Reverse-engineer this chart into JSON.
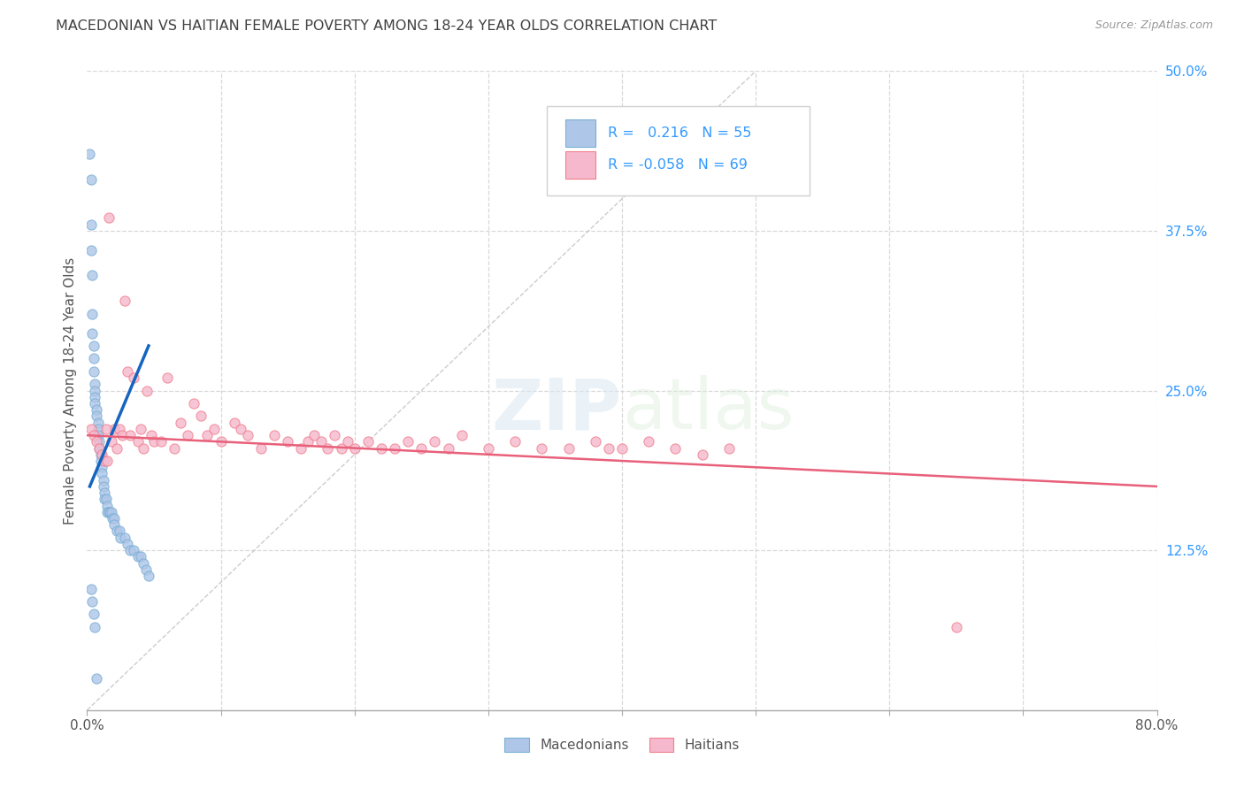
{
  "title": "MACEDONIAN VS HAITIAN FEMALE POVERTY AMONG 18-24 YEAR OLDS CORRELATION CHART",
  "source": "Source: ZipAtlas.com",
  "ylabel": "Female Poverty Among 18-24 Year Olds",
  "xlim": [
    0.0,
    0.8
  ],
  "ylim": [
    0.0,
    0.5
  ],
  "xticks": [
    0.0,
    0.1,
    0.2,
    0.3,
    0.4,
    0.5,
    0.6,
    0.7,
    0.8
  ],
  "xticklabels": [
    "0.0%",
    "",
    "",
    "",
    "",
    "",
    "",
    "",
    "80.0%"
  ],
  "yticks": [
    0.0,
    0.125,
    0.25,
    0.375,
    0.5
  ],
  "yticklabels": [
    "",
    "12.5%",
    "25.0%",
    "37.5%",
    "50.0%"
  ],
  "legend_r_mac": " 0.216",
  "legend_n_mac": "55",
  "legend_r_hai": "-0.058",
  "legend_n_hai": "69",
  "mac_color": "#aec6e8",
  "hai_color": "#f5b8cc",
  "mac_edge": "#7aafd4",
  "hai_edge": "#f08090",
  "trend_mac_color": "#1565C0",
  "trend_hai_color": "#e8607a",
  "ref_line_color": "#c0c0c0",
  "grid_color": "#d8d8d8",
  "title_color": "#404040",
  "axis_label_color": "#555555",
  "tick_color_right": "#3399ff",
  "watermark_color": "#dae8f4",
  "mac_x": [
    0.002,
    0.003,
    0.003,
    0.003,
    0.004,
    0.004,
    0.004,
    0.005,
    0.005,
    0.005,
    0.006,
    0.006,
    0.006,
    0.006,
    0.007,
    0.007,
    0.008,
    0.008,
    0.008,
    0.009,
    0.009,
    0.01,
    0.01,
    0.011,
    0.011,
    0.012,
    0.012,
    0.013,
    0.013,
    0.014,
    0.015,
    0.015,
    0.016,
    0.017,
    0.018,
    0.019,
    0.02,
    0.02,
    0.022,
    0.024,
    0.025,
    0.028,
    0.03,
    0.032,
    0.035,
    0.038,
    0.04,
    0.042,
    0.044,
    0.046,
    0.003,
    0.004,
    0.005,
    0.006,
    0.007
  ],
  "mac_y": [
    0.435,
    0.415,
    0.38,
    0.36,
    0.34,
    0.31,
    0.295,
    0.285,
    0.275,
    0.265,
    0.255,
    0.25,
    0.245,
    0.24,
    0.235,
    0.23,
    0.225,
    0.22,
    0.215,
    0.21,
    0.205,
    0.2,
    0.195,
    0.19,
    0.185,
    0.18,
    0.175,
    0.17,
    0.165,
    0.165,
    0.16,
    0.155,
    0.155,
    0.155,
    0.155,
    0.15,
    0.15,
    0.145,
    0.14,
    0.14,
    0.135,
    0.135,
    0.13,
    0.125,
    0.125,
    0.12,
    0.12,
    0.115,
    0.11,
    0.105,
    0.095,
    0.085,
    0.075,
    0.065,
    0.025
  ],
  "hai_x": [
    0.003,
    0.005,
    0.007,
    0.009,
    0.011,
    0.013,
    0.015,
    0.016,
    0.018,
    0.02,
    0.022,
    0.024,
    0.026,
    0.028,
    0.03,
    0.032,
    0.035,
    0.038,
    0.04,
    0.042,
    0.045,
    0.048,
    0.05,
    0.055,
    0.06,
    0.065,
    0.07,
    0.075,
    0.08,
    0.085,
    0.09,
    0.095,
    0.1,
    0.11,
    0.115,
    0.12,
    0.13,
    0.14,
    0.15,
    0.16,
    0.165,
    0.17,
    0.175,
    0.18,
    0.185,
    0.19,
    0.195,
    0.2,
    0.21,
    0.22,
    0.23,
    0.24,
    0.25,
    0.26,
    0.27,
    0.28,
    0.3,
    0.32,
    0.34,
    0.36,
    0.38,
    0.39,
    0.4,
    0.42,
    0.44,
    0.46,
    0.48,
    0.65,
    0.014
  ],
  "hai_y": [
    0.22,
    0.215,
    0.21,
    0.205,
    0.2,
    0.195,
    0.195,
    0.385,
    0.21,
    0.22,
    0.205,
    0.22,
    0.215,
    0.32,
    0.265,
    0.215,
    0.26,
    0.21,
    0.22,
    0.205,
    0.25,
    0.215,
    0.21,
    0.21,
    0.26,
    0.205,
    0.225,
    0.215,
    0.24,
    0.23,
    0.215,
    0.22,
    0.21,
    0.225,
    0.22,
    0.215,
    0.205,
    0.215,
    0.21,
    0.205,
    0.21,
    0.215,
    0.21,
    0.205,
    0.215,
    0.205,
    0.21,
    0.205,
    0.21,
    0.205,
    0.205,
    0.21,
    0.205,
    0.21,
    0.205,
    0.215,
    0.205,
    0.21,
    0.205,
    0.205,
    0.21,
    0.205,
    0.205,
    0.21,
    0.205,
    0.2,
    0.205,
    0.065,
    0.22
  ],
  "mac_trend_x": [
    0.002,
    0.046
  ],
  "mac_trend_y": [
    0.175,
    0.285
  ],
  "hai_trend_x": [
    0.0,
    0.8
  ],
  "hai_trend_y": [
    0.215,
    0.175
  ],
  "ref_line_x": [
    0.0,
    0.5
  ],
  "ref_line_y": [
    0.0,
    0.5
  ],
  "marker_size": 65,
  "marker_alpha": 0.8
}
